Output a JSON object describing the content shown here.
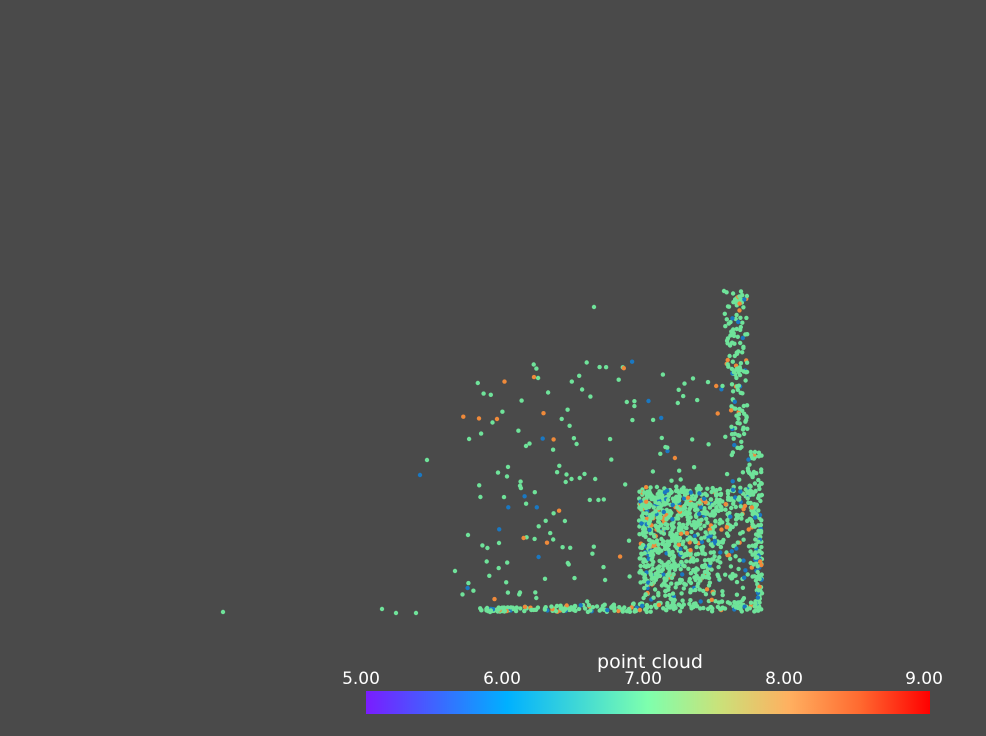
{
  "scene": {
    "background_color": "#4a4a4a",
    "legend_title": "point cloud",
    "colormap_stops": [
      {
        "value": 5.0,
        "color": "#7a1cff"
      },
      {
        "value": 6.0,
        "color": "#00b0ff"
      },
      {
        "value": 7.0,
        "color": "#7effad"
      },
      {
        "value": 7.5,
        "color": "#c9e27a"
      },
      {
        "value": 8.0,
        "color": "#ffb060"
      },
      {
        "value": 8.5,
        "color": "#ff6a30"
      },
      {
        "value": 9.0,
        "color": "#ff0000"
      }
    ],
    "ticks": [
      "5.00",
      "6.00",
      "7.00",
      "8.00",
      "9.00"
    ],
    "point_colors": {
      "green": "#6fe39a",
      "blue": "#1a78c2",
      "orange": "#f08a3a"
    }
  }
}
